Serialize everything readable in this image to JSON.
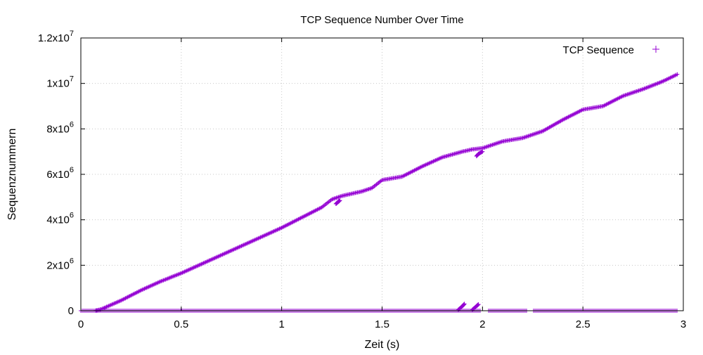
{
  "chart_data": {
    "type": "scatter",
    "title": "TCP Sequence Number Over Time",
    "xlabel": "Zeit (s)",
    "ylabel": "Sequenznummern",
    "xlim": [
      0,
      3
    ],
    "ylim": [
      0,
      12000000
    ],
    "grid": true,
    "legend_position": "top-right",
    "marker": "+",
    "color": "#9400d3",
    "x_ticks": [
      {
        "value": 0,
        "label": "0"
      },
      {
        "value": 0.5,
        "label": "0.5"
      },
      {
        "value": 1,
        "label": "1"
      },
      {
        "value": 1.5,
        "label": "1.5"
      },
      {
        "value": 2,
        "label": "2"
      },
      {
        "value": 2.5,
        "label": "2.5"
      },
      {
        "value": 3,
        "label": "3"
      }
    ],
    "y_ticks": [
      {
        "value": 0,
        "mantissa": "0",
        "exp": ""
      },
      {
        "value": 2000000,
        "mantissa": "2x10",
        "exp": "6"
      },
      {
        "value": 4000000,
        "mantissa": "4x10",
        "exp": "6"
      },
      {
        "value": 6000000,
        "mantissa": "6x10",
        "exp": "6"
      },
      {
        "value": 8000000,
        "mantissa": "8x10",
        "exp": "6"
      },
      {
        "value": 10000000,
        "mantissa": "1x10",
        "exp": "7"
      },
      {
        "value": 12000000,
        "mantissa": "1.2x10",
        "exp": "7"
      }
    ],
    "series": [
      {
        "name": "TCP Sequence",
        "main_trend": [
          [
            0.07,
            0
          ],
          [
            0.1,
            60000
          ],
          [
            0.2,
            450000
          ],
          [
            0.3,
            900000
          ],
          [
            0.4,
            1300000
          ],
          [
            0.5,
            1650000
          ],
          [
            0.6,
            2050000
          ],
          [
            0.7,
            2450000
          ],
          [
            0.8,
            2850000
          ],
          [
            0.9,
            3250000
          ],
          [
            1.0,
            3650000
          ],
          [
            1.1,
            4100000
          ],
          [
            1.2,
            4550000
          ],
          [
            1.25,
            4900000
          ],
          [
            1.3,
            5050000
          ],
          [
            1.4,
            5250000
          ],
          [
            1.45,
            5400000
          ],
          [
            1.5,
            5750000
          ],
          [
            1.6,
            5900000
          ],
          [
            1.7,
            6350000
          ],
          [
            1.8,
            6750000
          ],
          [
            1.9,
            7000000
          ],
          [
            1.95,
            7100000
          ],
          [
            2.0,
            7150000
          ],
          [
            2.1,
            7450000
          ],
          [
            2.2,
            7600000
          ],
          [
            2.3,
            7900000
          ],
          [
            2.4,
            8400000
          ],
          [
            2.5,
            8850000
          ],
          [
            2.6,
            9000000
          ],
          [
            2.7,
            9450000
          ],
          [
            2.8,
            9750000
          ],
          [
            2.9,
            10100000
          ],
          [
            2.97,
            10400000
          ]
        ],
        "outlier_clusters": [
          [
            [
              1.27,
              4700000
            ],
            [
              1.28,
              4780000
            ],
            [
              1.29,
              4850000
            ]
          ],
          [
            [
              1.97,
              6800000
            ],
            [
              1.98,
              6900000
            ],
            [
              2.0,
              7000000
            ]
          ],
          [
            [
              1.88,
              50000
            ],
            [
              1.9,
              200000
            ],
            [
              1.91,
              300000
            ]
          ],
          [
            [
              1.95,
              50000
            ],
            [
              1.97,
              200000
            ],
            [
              1.98,
              280000
            ]
          ]
        ],
        "baseline": [
          [
            0.0,
            0
          ],
          [
            0.05,
            0
          ],
          [
            0.1,
            0
          ],
          [
            0.2,
            0
          ],
          [
            0.3,
            0
          ],
          [
            0.4,
            0
          ],
          [
            0.5,
            0
          ],
          [
            0.6,
            0
          ],
          [
            0.7,
            0
          ],
          [
            0.8,
            0
          ],
          [
            0.9,
            0
          ],
          [
            1.0,
            0
          ],
          [
            1.1,
            0
          ],
          [
            1.2,
            0
          ],
          [
            1.3,
            0
          ],
          [
            1.4,
            0
          ],
          [
            1.5,
            0
          ],
          [
            1.6,
            0
          ],
          [
            1.7,
            0
          ],
          [
            1.8,
            0
          ],
          [
            1.9,
            0
          ],
          [
            2.0,
            0
          ],
          [
            2.1,
            0
          ],
          [
            2.2,
            0
          ],
          [
            2.3,
            0
          ],
          [
            2.4,
            0
          ],
          [
            2.5,
            0
          ],
          [
            2.6,
            0
          ],
          [
            2.7,
            0
          ],
          [
            2.8,
            0
          ],
          [
            2.9,
            0
          ],
          [
            2.97,
            0
          ]
        ]
      }
    ]
  }
}
